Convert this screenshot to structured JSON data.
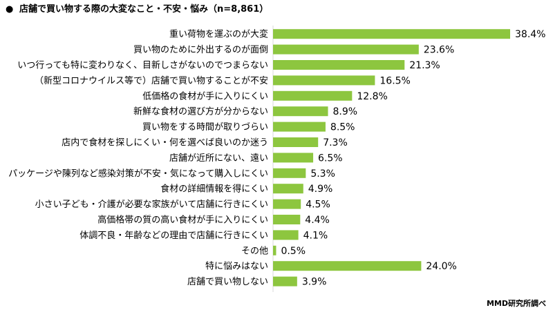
{
  "chart_data": {
    "type": "bar",
    "orientation": "horizontal",
    "title": "店舗で買い物する際の大変なこと・不安・悩み（n=8,861）",
    "title_bullet": "●",
    "categories": [
      "重い荷物を運ぶのが大変",
      "買い物のために外出するのが面倒",
      "いつ行っても特に変わりなく、目新しさがないのでつまらない",
      "（新型コロナウイルス等で）店舗で買い物することが不安",
      "低価格の食材が手に入りにくい",
      "新鮮な食材の選び方が分からない",
      "買い物をする時間が取りづらい",
      "店内で食材を探しにくい・何を選べば良いのか迷う",
      "店舗が近所にない、遠い",
      "パッケージや陳列など感染対策が不安・気になって購入しにくい",
      "食材の詳細情報を得にくい",
      "小さい子ども・介護が必要な家族がいて店舗に行きにくい",
      "高価格帯の質の高い食材が手に入りにくい",
      "体調不良・年齢などの理由で店舗に行きにくい",
      "その他",
      "特に悩みはない",
      "店舗で買い物しない"
    ],
    "values": [
      38.4,
      23.6,
      21.3,
      16.5,
      12.8,
      8.9,
      8.5,
      7.3,
      6.5,
      5.3,
      4.9,
      4.5,
      4.4,
      4.1,
      0.5,
      24.0,
      3.9
    ],
    "value_labels": [
      "38.4%",
      "23.6%",
      "21.3%",
      "16.5%",
      "12.8%",
      "8.9%",
      "8.5%",
      "7.3%",
      "6.5%",
      "5.3%",
      "4.9%",
      "4.5%",
      "4.4%",
      "4.1%",
      "0.5%",
      "24.0%",
      "3.9%"
    ],
    "unit": "%",
    "xlim": [
      0,
      38.4
    ],
    "grid": false,
    "legend": "none",
    "bar_color": "#8dc63f",
    "credit": "MMD研究所調べ"
  }
}
